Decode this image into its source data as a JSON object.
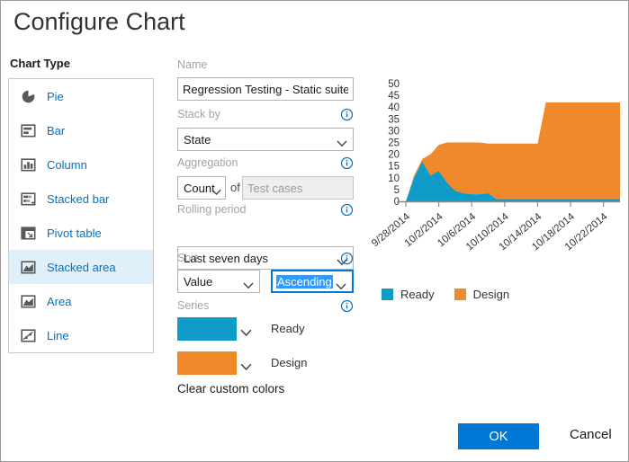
{
  "dialog": {
    "title": "Configure Chart"
  },
  "colors": {
    "accent_blue": "#0078d7",
    "link_blue": "#0072c6",
    "selected_row_bg": "#e0f0fa",
    "selection_highlight": "#3399ff",
    "series_ready": "#0f9bc8",
    "series_design": "#f0882c"
  },
  "chart_type": {
    "label": "Chart Type",
    "items": [
      {
        "label": "Pie",
        "icon": "pie-icon",
        "selected": false
      },
      {
        "label": "Bar",
        "icon": "bar-icon",
        "selected": false
      },
      {
        "label": "Column",
        "icon": "column-icon",
        "selected": false
      },
      {
        "label": "Stacked bar",
        "icon": "stacked-bar-icon",
        "selected": false
      },
      {
        "label": "Pivot table",
        "icon": "pivot-table-icon",
        "selected": false
      },
      {
        "label": "Stacked area",
        "icon": "stacked-area-icon",
        "selected": true
      },
      {
        "label": "Area",
        "icon": "area-icon",
        "selected": false
      },
      {
        "label": "Line",
        "icon": "line-icon",
        "selected": false
      }
    ]
  },
  "form": {
    "name": {
      "label": "Name",
      "value": "Regression Testing - Static suite - Ch"
    },
    "stack_by": {
      "label": "Stack by",
      "value": "State"
    },
    "aggregation": {
      "label": "Aggregation",
      "value": "Count",
      "of_label": "of",
      "field_value": "Test cases"
    },
    "rolling_period": {
      "label": "Rolling period",
      "value": "Last seven days"
    },
    "sort": {
      "label": "Sort",
      "value": "Value",
      "direction": "Ascending"
    },
    "series": {
      "label": "Series",
      "items": [
        {
          "name": "Ready",
          "color": "#0f9bc8"
        },
        {
          "name": "Design",
          "color": "#f0882c"
        }
      ],
      "clear_label": "Clear custom colors"
    }
  },
  "footer": {
    "ok_label": "OK",
    "cancel_label": "Cancel"
  },
  "chart_data": {
    "type": "area",
    "stacked": true,
    "title": "",
    "xlabel": "",
    "ylabel": "",
    "ylim": [
      0,
      50
    ],
    "ytick_step": 5,
    "grid": false,
    "legend_position": "bottom",
    "x_tick_labels": [
      "9/28/2014",
      "10/2/2014",
      "10/6/2014",
      "10/10/2014",
      "10/14/2014",
      "10/18/2014",
      "10/22/2014"
    ],
    "x_tick_indices": [
      0,
      4,
      8,
      12,
      16,
      20,
      24
    ],
    "x_span_days": 27,
    "series": [
      {
        "name": "Ready",
        "color": "#0f9bc8",
        "values": [
          0,
          10,
          17,
          11,
          13,
          8,
          4.5,
          3.5,
          3,
          3,
          3.5,
          1,
          1,
          1,
          1,
          1,
          1,
          1,
          1,
          1,
          1,
          1,
          1,
          1,
          1,
          1,
          1
        ]
      },
      {
        "name": "Design",
        "color": "#f0882c",
        "values": [
          0,
          1,
          1,
          9,
          11,
          17,
          20.5,
          21.5,
          22,
          22,
          21,
          23.5,
          23.5,
          23.5,
          23.5,
          23.5,
          23.5,
          41,
          41,
          41,
          41,
          41,
          41,
          41,
          41,
          41,
          41
        ]
      }
    ]
  }
}
